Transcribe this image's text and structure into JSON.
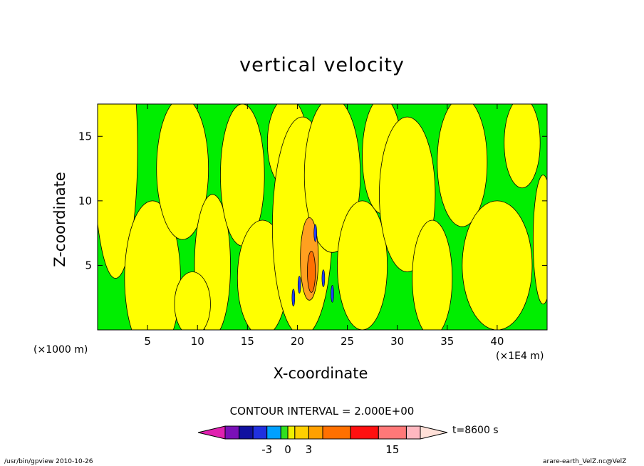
{
  "chart_data": {
    "type": "heatmap",
    "subtype": "filled-contour",
    "title": "vertical velocity",
    "xlabel": "X-coordinate",
    "ylabel": "Z-coordinate",
    "x_unit_label": "(×1000 m)",
    "y_unit_label": "(×1E4 m)",
    "xlim": [
      0,
      45
    ],
    "ylim": [
      0,
      17.5
    ],
    "x_ticks": [
      5,
      10,
      15,
      20,
      25,
      30,
      35,
      40
    ],
    "y_ticks": [
      5,
      10,
      15
    ],
    "contour_interval_text": "CONTOUR INTERVAL = 2.000E+00",
    "contour_interval": 2.0,
    "colorbar": {
      "levels": [
        -9,
        -7,
        -5,
        -3,
        -1,
        0,
        1,
        3,
        5,
        9,
        13,
        17,
        19
      ],
      "tick_labels": [
        "-3",
        "0",
        "3",
        "15"
      ],
      "tick_values": [
        -3,
        0,
        3,
        15
      ],
      "colors": [
        "#e020b0",
        "#7a10b8",
        "#1010a0",
        "#2030e0",
        "#00a0ff",
        "#30e020",
        "#f0f000",
        "#ffd000",
        "#ffa000",
        "#ff7000",
        "#ff1010",
        "#ff7878",
        "#ffb8c0",
        "#ffe0d8"
      ]
    },
    "regions": {
      "background": "#00ee00",
      "positive": "#ffff00",
      "strong_positive": "#ffa020",
      "strongest_positive": "#ff7000",
      "negative": "#2040ff"
    },
    "grid": false,
    "legend": "none"
  },
  "annotations": {
    "timestamp": "t=8600 s",
    "footer_left": "/usr/bin/gpview   2010-10-26",
    "footer_right": "arare-earth_VelZ.nc@VelZ"
  }
}
